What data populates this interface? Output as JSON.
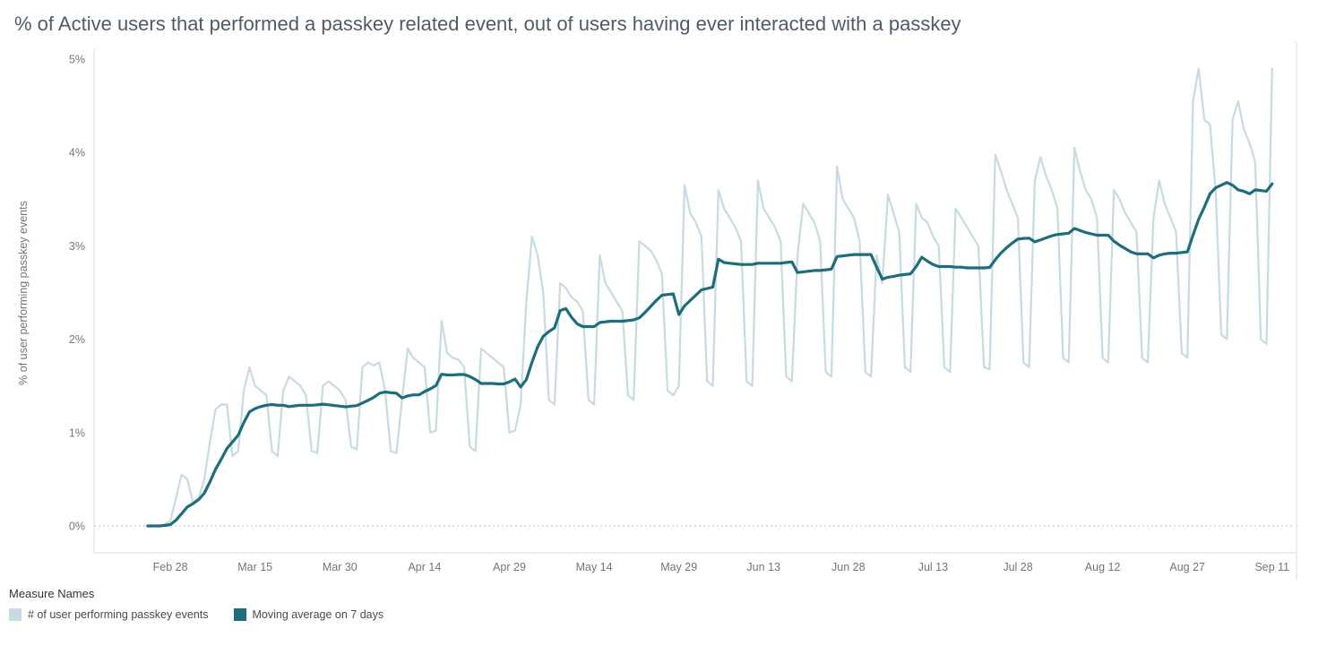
{
  "legend": {
    "title": "Measure Names"
  },
  "theme": {
    "title_color": "#4e5b6b",
    "tick_color": "#757575",
    "axis_line_color": "#d9d9d9",
    "zero_line_color": "#bdbdbd",
    "legend_title_color": "#333333",
    "legend_label_color": "#4a4a4a"
  },
  "chart_data": {
    "type": "line",
    "title": "% of Active users that performed a passkey related event, out of users having ever interacted with a passkey",
    "xlabel": "",
    "ylabel": "% of user performing passkey events",
    "ylim": [
      0,
      5
    ],
    "y_ticks": [
      "0%",
      "1%",
      "2%",
      "3%",
      "4%",
      "5%"
    ],
    "grid": "zero-line-only-dotted",
    "legend_position": "bottom-left",
    "x_frequency": "daily",
    "x_start_date": "Feb 24",
    "x_end_date": "Sep 11",
    "x_tick_labels": [
      "Feb 28",
      "Mar 15",
      "Mar 30",
      "Apr 14",
      "Apr 29",
      "May 14",
      "May 29",
      "Jun 13",
      "Jun 28",
      "Jul 13",
      "Jul 28",
      "Aug 12",
      "Aug 27",
      "Sep 11"
    ],
    "x_tick_day_indices": [
      4,
      19,
      34,
      49,
      64,
      79,
      94,
      109,
      124,
      139,
      154,
      169,
      184,
      199
    ],
    "moving_average_window": 7,
    "series": [
      {
        "name": "# of user performing passkey events",
        "role": "daily-values",
        "color": "#c6dbe2",
        "values": [
          0.0,
          0.0,
          0.0,
          0.02,
          0.05,
          0.3,
          0.55,
          0.5,
          0.25,
          0.3,
          0.5,
          0.9,
          1.25,
          1.3,
          1.3,
          0.75,
          0.8,
          1.45,
          1.7,
          1.5,
          1.45,
          1.4,
          0.8,
          0.75,
          1.45,
          1.6,
          1.55,
          1.5,
          1.4,
          0.8,
          0.78,
          1.5,
          1.55,
          1.5,
          1.45,
          1.35,
          0.85,
          0.82,
          1.7,
          1.75,
          1.72,
          1.75,
          1.45,
          0.8,
          0.78,
          1.35,
          1.9,
          1.8,
          1.75,
          1.7,
          1.0,
          1.02,
          2.2,
          1.85,
          1.8,
          1.78,
          1.7,
          0.85,
          0.8,
          1.9,
          1.85,
          1.8,
          1.75,
          1.7,
          1.0,
          1.02,
          1.3,
          2.4,
          3.1,
          2.9,
          2.5,
          1.35,
          1.3,
          2.6,
          2.55,
          2.45,
          2.4,
          2.3,
          1.35,
          1.3,
          2.9,
          2.6,
          2.5,
          2.4,
          2.3,
          1.4,
          1.35,
          3.05,
          3.0,
          2.95,
          2.85,
          2.7,
          1.45,
          1.4,
          1.5,
          3.65,
          3.35,
          3.25,
          3.1,
          1.55,
          1.5,
          3.6,
          3.4,
          3.3,
          3.2,
          3.05,
          1.55,
          1.5,
          3.7,
          3.4,
          3.3,
          3.2,
          3.05,
          1.6,
          1.55,
          2.9,
          3.45,
          3.35,
          3.25,
          3.05,
          1.65,
          1.6,
          3.85,
          3.5,
          3.4,
          3.3,
          3.05,
          1.65,
          1.6,
          2.9,
          2.6,
          3.55,
          3.35,
          3.15,
          1.7,
          1.65,
          3.45,
          3.3,
          3.25,
          3.1,
          3.0,
          1.7,
          1.65,
          3.4,
          3.3,
          3.2,
          3.1,
          3.0,
          1.7,
          1.68,
          3.98,
          3.8,
          3.6,
          3.45,
          3.3,
          1.75,
          1.7,
          3.7,
          3.95,
          3.75,
          3.6,
          3.4,
          1.8,
          1.75,
          4.05,
          3.8,
          3.6,
          3.5,
          3.3,
          1.8,
          1.75,
          3.6,
          3.5,
          3.35,
          3.25,
          3.15,
          1.8,
          1.75,
          3.3,
          3.7,
          3.45,
          3.3,
          3.15,
          1.85,
          1.8,
          4.55,
          4.9,
          4.35,
          4.3,
          3.6,
          2.05,
          2.0,
          4.35,
          4.55,
          4.25,
          4.1,
          3.9,
          2.0,
          1.95,
          4.9
        ]
      },
      {
        "name": "Moving average on 7 days",
        "role": "moving-average",
        "color": "#1c6e7d",
        "derived_from": "daily-values",
        "window": 7
      }
    ]
  }
}
